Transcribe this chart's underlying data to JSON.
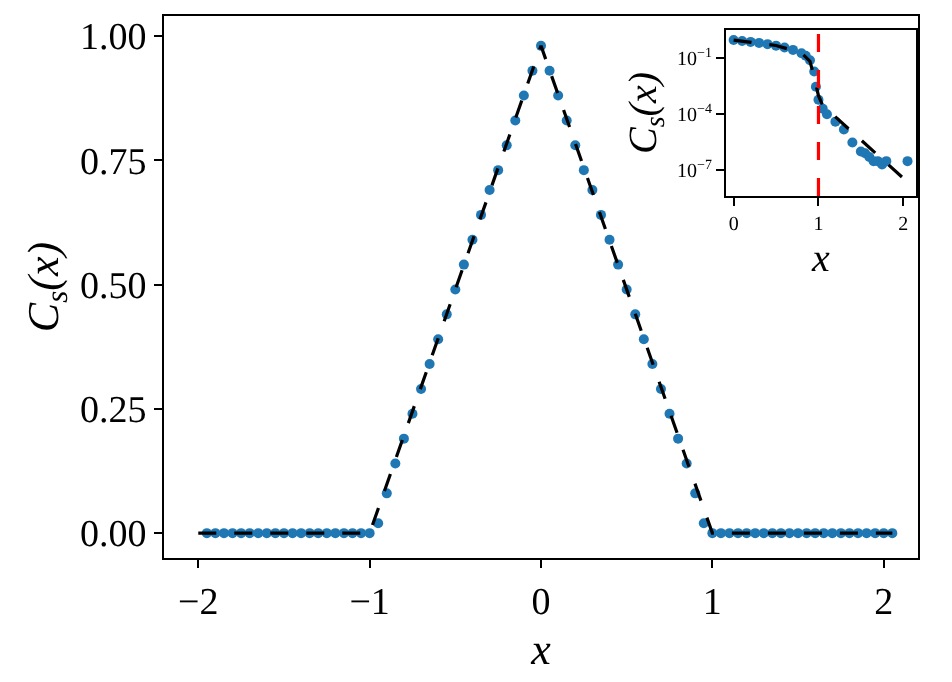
{
  "chart_data": [
    {
      "type": "scatter",
      "xlabel": "x",
      "ylabel": "C$_{s}$(x)",
      "xlim": [
        -2.2,
        2.2
      ],
      "ylim": [
        -0.05,
        1.04
      ],
      "xticks": [
        {
          "value": -2,
          "label": "−2"
        },
        {
          "value": -1,
          "label": "−1"
        },
        0,
        1,
        2
      ],
      "yticks": [
        {
          "value": 0,
          "label": "0.00"
        },
        0.25,
        {
          "value": 0.5,
          "label": "0.50"
        },
        0.75,
        {
          "value": 1,
          "label": "1.00"
        }
      ],
      "series": [
        {
          "color": "#1f77b4",
          "marker": "circle",
          "x": [
            -1.95,
            -1.9,
            -1.85,
            -1.8,
            -1.75,
            -1.7,
            -1.65,
            -1.6,
            -1.55,
            -1.5,
            -1.45,
            -1.4,
            -1.35,
            -1.3,
            -1.25,
            -1.2,
            -1.15,
            -1.1,
            -1.05,
            -1.0,
            -0.95,
            -0.9,
            -0.85,
            -0.8,
            -0.75,
            -0.7,
            -0.65,
            -0.6,
            -0.55,
            -0.5,
            -0.45,
            -0.4,
            -0.35,
            -0.3,
            -0.25,
            -0.2,
            -0.15,
            -0.1,
            -0.05,
            0,
            0.05,
            0.1,
            0.15,
            0.2,
            0.25,
            0.3,
            0.35,
            0.4,
            0.45,
            0.5,
            0.55,
            0.6,
            0.65,
            0.7,
            0.75,
            0.8,
            0.85,
            0.9,
            0.95,
            1.0,
            1.05,
            1.1,
            1.15,
            1.2,
            1.25,
            1.3,
            1.35,
            1.4,
            1.45,
            1.5,
            1.55,
            1.6,
            1.65,
            1.7,
            1.75,
            1.8,
            1.85,
            1.9,
            1.95,
            2.0,
            2.05
          ],
          "values": [
            0,
            0,
            0,
            0,
            0,
            0,
            0,
            0,
            0,
            0,
            0,
            0,
            0,
            0,
            0,
            0,
            0,
            0,
            0,
            0,
            0.02,
            0.08,
            0.14,
            0.19,
            0.24,
            0.29,
            0.34,
            0.39,
            0.44,
            0.49,
            0.54,
            0.59,
            0.64,
            0.69,
            0.73,
            0.78,
            0.83,
            0.88,
            0.93,
            0.98,
            0.93,
            0.88,
            0.83,
            0.78,
            0.73,
            0.69,
            0.64,
            0.59,
            0.54,
            0.49,
            0.44,
            0.39,
            0.34,
            0.29,
            0.24,
            0.19,
            0.14,
            0.08,
            0.02,
            0,
            0,
            0,
            0,
            0,
            0,
            0,
            0,
            0,
            0,
            0,
            0,
            0,
            0,
            0,
            0,
            0,
            0,
            0,
            0,
            0,
            0
          ]
        },
        {
          "type": "line",
          "color": "#000000",
          "marker": "none",
          "line_style": "dashed",
          "x": [
            -2,
            -1,
            0,
            1,
            2.05
          ],
          "values": [
            0,
            0,
            0.98,
            0,
            0
          ]
        }
      ]
    },
    {
      "type": "scatter",
      "xlabel": "x",
      "ylabel": "C$_{s}$(x)",
      "log": "y",
      "xlim": [
        -0.09,
        2.15
      ],
      "ylim": [
        4e-09,
        3.4
      ],
      "xticks": [
        0,
        1,
        2
      ],
      "yticks": [
        {
          "value": 0.1,
          "label": "10$^{−1}$"
        },
        {
          "value": 0.0001,
          "label": "10$^{−4}$"
        },
        {
          "value": 1e-07,
          "label": "10$^{−7}$"
        }
      ],
      "ref_lines": [
        {
          "axis": "x",
          "value": 1,
          "color": "#ff0000",
          "line_style": "dashed"
        }
      ],
      "series": [
        {
          "color": "#1f77b4",
          "marker": "circle",
          "x": [
            0,
            0.1,
            0.2,
            0.3,
            0.4,
            0.5,
            0.6,
            0.7,
            0.8,
            0.85,
            0.9,
            0.95,
            0.97,
            1.0,
            1.05,
            1.1,
            1.2,
            1.3,
            1.4,
            1.5,
            1.55,
            1.6,
            1.65,
            1.7,
            1.75,
            1.8,
            2.05
          ],
          "values": [
            0.98,
            0.88,
            0.78,
            0.69,
            0.59,
            0.49,
            0.39,
            0.29,
            0.19,
            0.14,
            0.08,
            0.02,
            0.003,
            0.0006,
            0.0002,
            0.0001,
            4e-05,
            1.5e-05,
            3e-06,
            1e-06,
            8e-07,
            5e-07,
            3e-07,
            3e-07,
            2e-07,
            3e-07,
            3e-07
          ]
        },
        {
          "type": "line",
          "color": "#000000",
          "marker": "none",
          "line_style": "dashed",
          "x": [
            0,
            0.5,
            0.8,
            0.9,
            0.95,
            1.0,
            1.05,
            2.1
          ],
          "values": [
            0.98,
            0.5,
            0.2,
            0.07,
            0.01,
            0.001,
            0.0003,
            1.4e-08
          ]
        }
      ]
    }
  ]
}
